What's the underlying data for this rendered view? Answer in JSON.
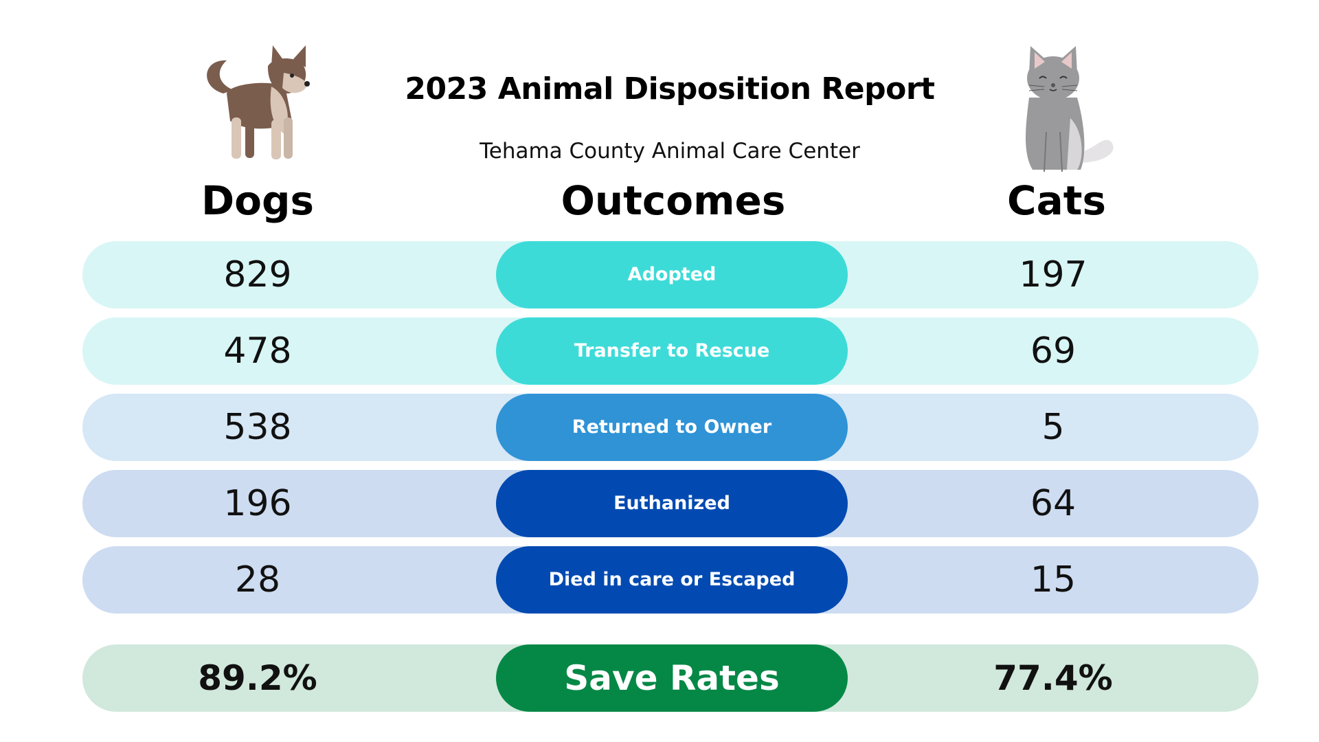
{
  "header": {
    "title": "2023 Animal Disposition Report",
    "subtitle": "Tehama County Animal Care Center"
  },
  "columns": {
    "dogs": "Dogs",
    "outcomes": "Outcomes",
    "cats": "Cats"
  },
  "rows": [
    {
      "outcome": "Adopted",
      "dogs": "829",
      "cats": "197"
    },
    {
      "outcome": "Transfer to Rescue",
      "dogs": "478",
      "cats": "69"
    },
    {
      "outcome": "Returned to Owner",
      "dogs": "538",
      "cats": "5"
    },
    {
      "outcome": "Euthanized",
      "dogs": "196",
      "cats": "64"
    },
    {
      "outcome": "Died in care or Escaped",
      "dogs": "28",
      "cats": "15"
    }
  ],
  "save_rates": {
    "label": "Save Rates",
    "dogs": "89.2%",
    "cats": "77.4%"
  },
  "colors": {
    "light_teal": "#d8f6f5",
    "teal": "#3ddbd8",
    "light_blue": "#d6e7f6",
    "blue": "#2f93d6",
    "light_navy": "#cddcf1",
    "navy": "#024ab1",
    "light_green": "#d1e8dc",
    "green": "#058846"
  },
  "icons": [
    "dog-illustration-icon",
    "cat-illustration-icon"
  ]
}
